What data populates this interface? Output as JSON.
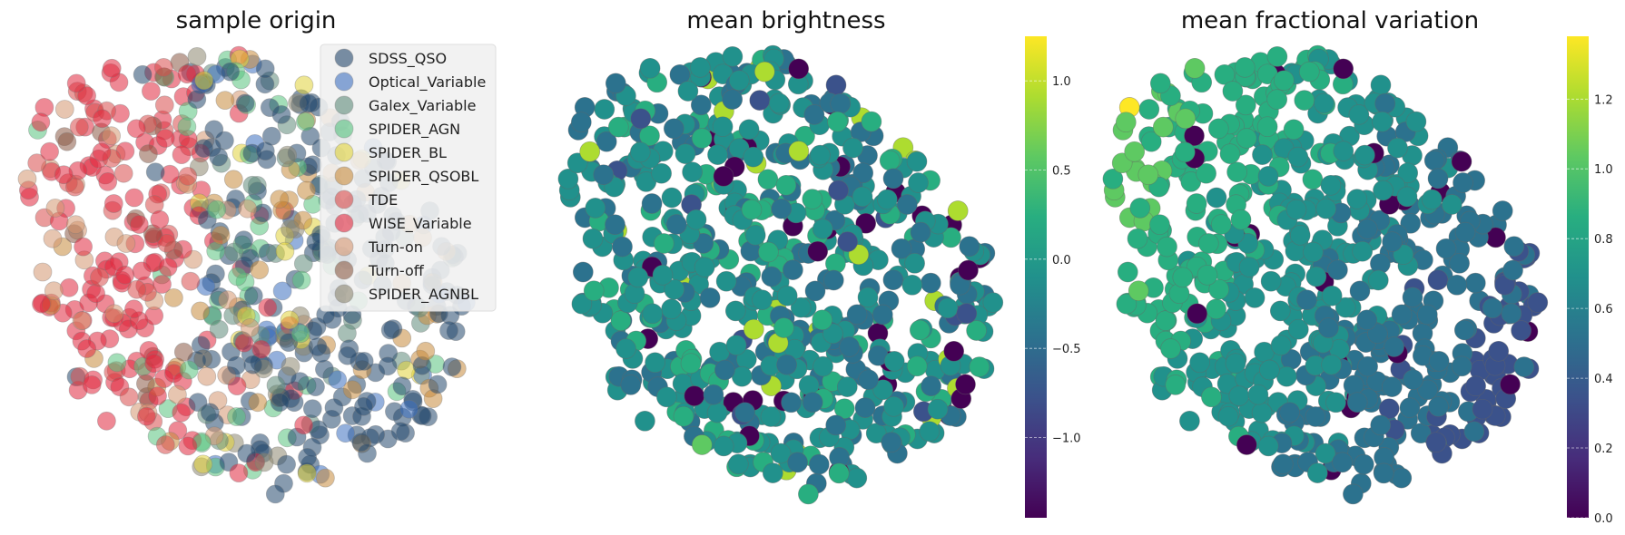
{
  "chart_data": [
    {
      "type": "scatter",
      "title": "sample origin",
      "legend": {
        "placement": "top-right",
        "entries": [
          {
            "label": "SDSS_QSO",
            "color": "#24486d"
          },
          {
            "label": "Optical_Variable",
            "color": "#3d6fbf"
          },
          {
            "label": "Galex_Variable",
            "color": "#5e8a7a"
          },
          {
            "label": "SPIDER_AGN",
            "color": "#57c27e"
          },
          {
            "label": "SPIDER_BL",
            "color": "#e0d23a"
          },
          {
            "label": "SPIDER_QSOBL",
            "color": "#c78a3c"
          },
          {
            "label": "TDE",
            "color": "#d94a4a"
          },
          {
            "label": "WISE_Variable",
            "color": "#e0283e"
          },
          {
            "label": "Turn-on",
            "color": "#d3956f"
          },
          {
            "label": "Turn-off",
            "color": "#8a5a45"
          },
          {
            "label": "SPIDER_AGNBL",
            "color": "#8c8670"
          }
        ]
      },
      "grid": false,
      "axes_visible": false
    },
    {
      "type": "scatter",
      "title": "mean brightness",
      "colormap": "viridis",
      "colorbar": {
        "range": [
          -1.45,
          1.25
        ],
        "ticks": [
          -1.0,
          -0.5,
          0.0,
          0.5,
          1.0
        ],
        "tick_labels": [
          "−1.0",
          "−0.5",
          "0.0",
          "0.5",
          "1.0"
        ]
      },
      "grid": false,
      "axes_visible": false
    },
    {
      "type": "scatter",
      "title": "mean fractional variation",
      "colormap": "viridis",
      "colorbar": {
        "range": [
          0.0,
          1.38
        ],
        "ticks": [
          0.0,
          0.2,
          0.4,
          0.6,
          0.8,
          1.0,
          1.2
        ],
        "tick_labels": [
          "0.0",
          "0.2",
          "0.4",
          "0.6",
          "0.8",
          "1.0",
          "1.2"
        ]
      },
      "grid": false,
      "axes_visible": false
    }
  ]
}
